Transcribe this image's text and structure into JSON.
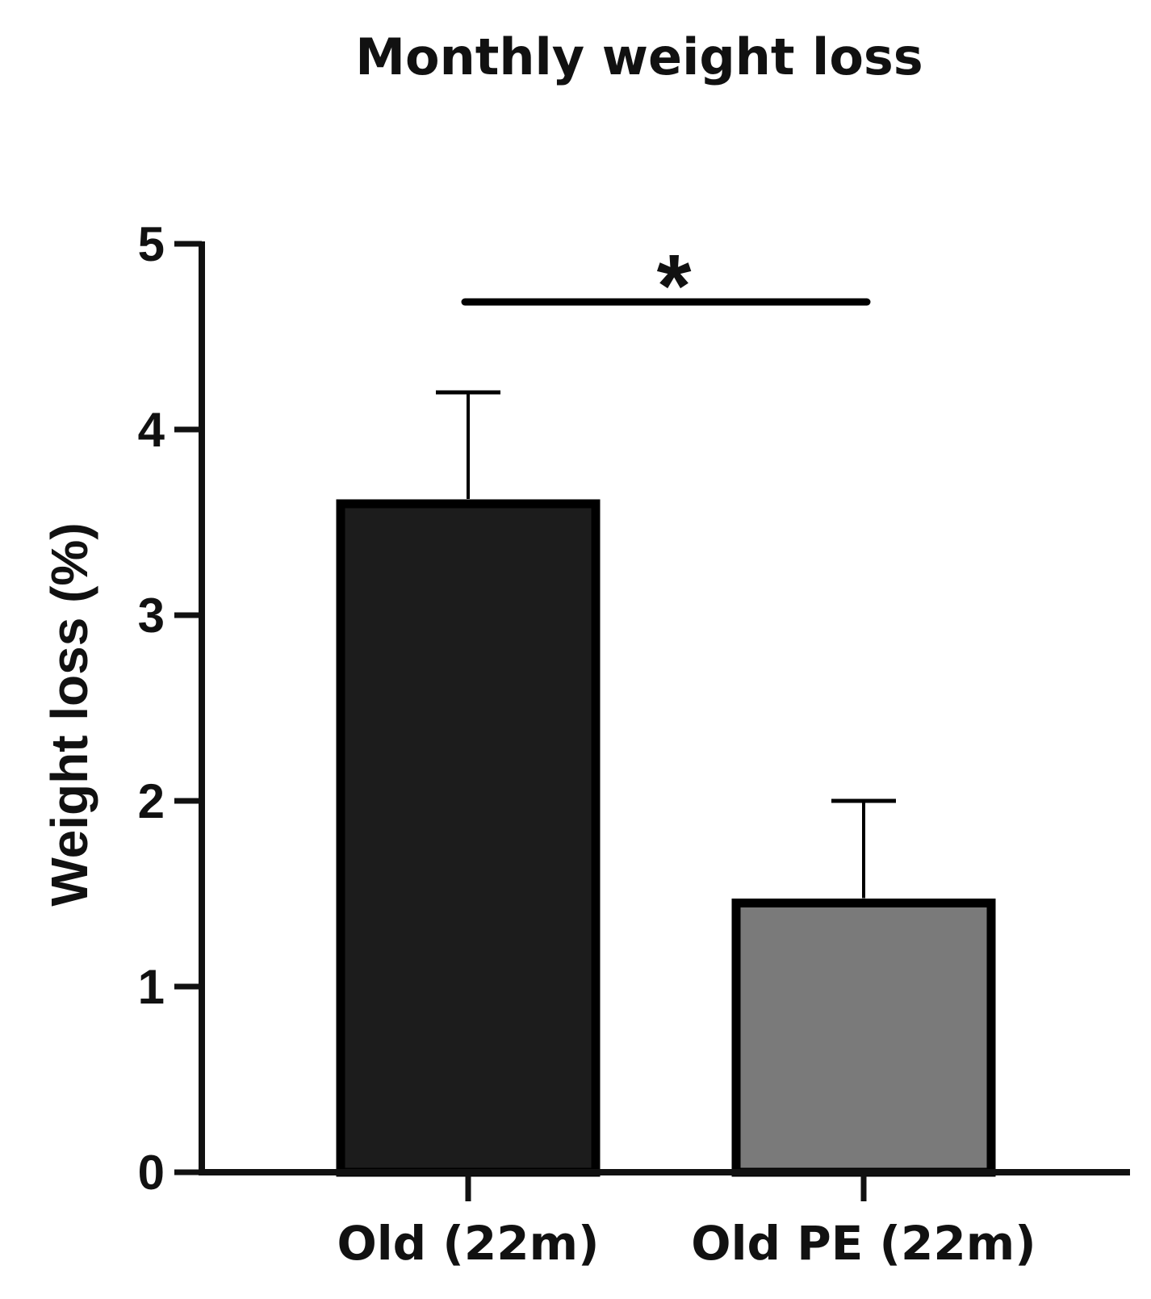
{
  "chart_data": {
    "type": "bar",
    "title": "Monthly weight loss",
    "ylabel": "Weight loss (%)",
    "xlabel": "",
    "categories": [
      "Old (22m)",
      "Old PE (22m)"
    ],
    "values": [
      3.6,
      1.45
    ],
    "errors": [
      0.6,
      0.55
    ],
    "colors": [
      "#1c1c1c",
      "#7a7a7a"
    ],
    "ylim": [
      0,
      5
    ],
    "yticks": [
      "0",
      "1",
      "2",
      "3",
      "4",
      "5"
    ],
    "significance": {
      "between": [
        0,
        1
      ],
      "label": "*"
    },
    "grid": false,
    "legend": "none"
  }
}
